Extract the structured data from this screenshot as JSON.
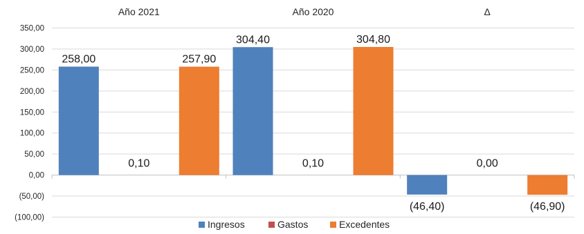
{
  "chart_data": {
    "type": "bar",
    "categories": [
      "Año 2021",
      "Año 2020",
      "Δ"
    ],
    "series": [
      {
        "name": "Ingresos",
        "color": "#4f81bd",
        "values": [
          258.0,
          304.4,
          -46.4
        ],
        "labels": [
          "258,00",
          "304,40",
          "(46,40)"
        ]
      },
      {
        "name": "Gastos",
        "color": "#c0504d",
        "values": [
          0.1,
          0.1,
          0.0
        ],
        "labels": [
          "0,10",
          "0,10",
          "0,00"
        ]
      },
      {
        "name": "Excedentes",
        "color": "#ed7d31",
        "values": [
          257.9,
          304.8,
          -46.9
        ],
        "labels": [
          "257,90",
          "304,80",
          "(46,90)"
        ]
      }
    ],
    "ylim": [
      -100,
      350
    ],
    "yticks": [
      350,
      300,
      250,
      200,
      150,
      100,
      50,
      0,
      -50,
      -100
    ],
    "ytick_labels": [
      "350,00",
      "300,00",
      "250,00",
      "200,00",
      "150,00",
      "100,00",
      "50,00",
      "0,00",
      "(50,00)",
      "(100,00)"
    ],
    "grid": true,
    "legend_position": "bottom"
  }
}
